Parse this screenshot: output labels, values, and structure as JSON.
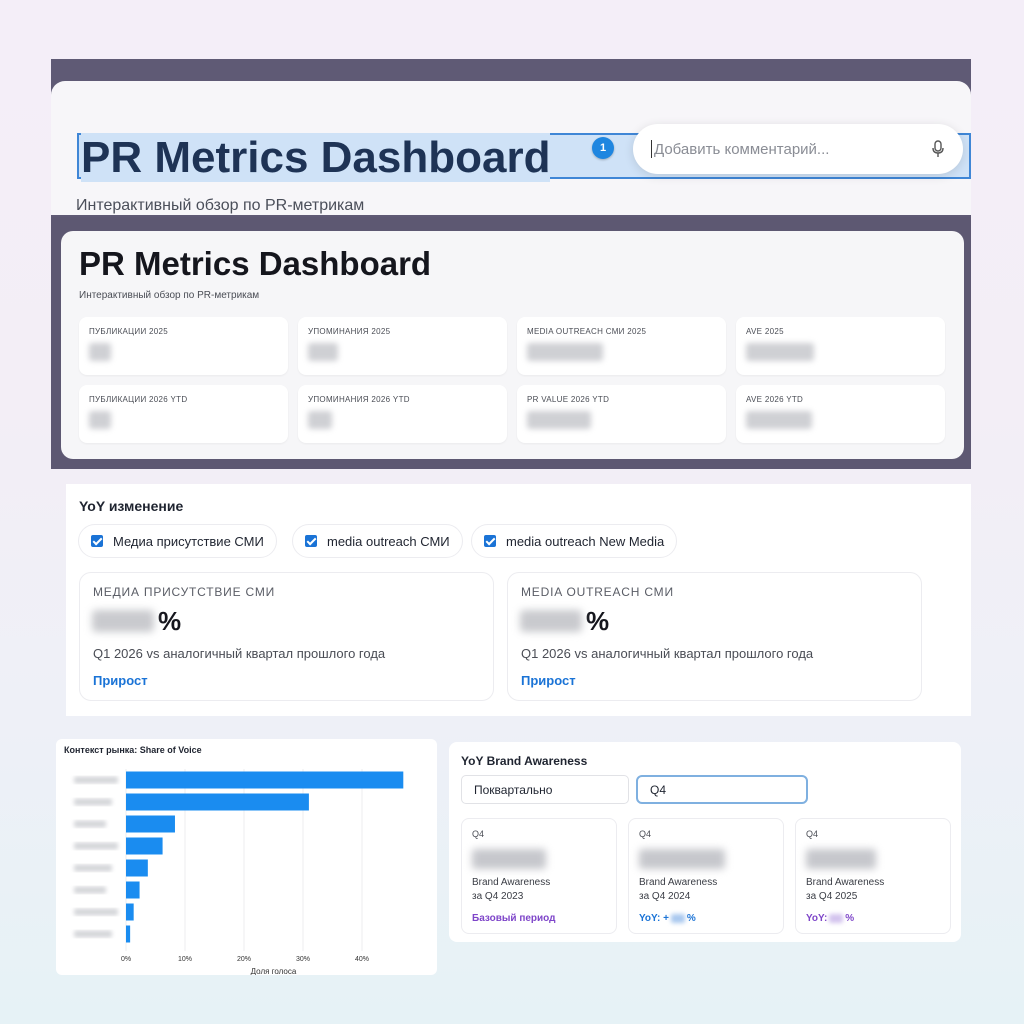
{
  "header": {
    "title": "PR Metrics Dashboard",
    "subtitle": "Интерактивный обзор по PR-метрикам",
    "comment_count": "1",
    "comment_placeholder": "Добавить комментарий..."
  },
  "kpi": {
    "title": "PR Metrics Dashboard",
    "subtitle": "Интерактивный обзор по PR-метрикам",
    "tiles": [
      {
        "label": "ПУБЛИКАЦИИ 2025"
      },
      {
        "label": "УПОМИНАНИЯ 2025"
      },
      {
        "label": "MEDIA OUTREACH СМИ 2025"
      },
      {
        "label": "AVE 2025"
      },
      {
        "label": "ПУБЛИКАЦИИ 2026 YTD"
      },
      {
        "label": "УПОМИНАНИЯ 2026 YTD"
      },
      {
        "label": "PR VALUE 2026 YTD"
      },
      {
        "label": "AVE 2026 YTD"
      }
    ]
  },
  "yoy": {
    "title": "YoY изменение",
    "filters": [
      {
        "label": "Медиа присутствие СМИ",
        "checked": true
      },
      {
        "label": "media outreach СМИ",
        "checked": true
      },
      {
        "label": "media outreach New Media",
        "checked": true
      }
    ],
    "metrics": [
      {
        "label": "МЕДИА ПРИСУТСТВИЕ СМИ",
        "unit": "%",
        "desc": "Q1 2026 vs аналогичный квартал прошлого года",
        "trend": "Прирост"
      },
      {
        "label": "MEDIA OUTREACH СМИ",
        "unit": "%",
        "desc": "Q1 2026 vs аналогичный квартал прошлого года",
        "trend": "Прирост"
      }
    ]
  },
  "sov": {
    "title": "Контекст рынка: Share of Voice",
    "xlabel": "Доля голоса",
    "color": "#1a8cf0"
  },
  "chart_data": {
    "type": "bar",
    "orientation": "horizontal",
    "title": "Контекст рынка: Share of Voice",
    "xlabel": "Доля голоса",
    "ylabel": "",
    "xlim": [
      0,
      0.45
    ],
    "xticks": [
      "0%",
      "10%",
      "20%",
      "30%",
      "40%"
    ],
    "xtick_values": [
      0,
      0.1,
      0.2,
      0.3,
      0.4
    ],
    "grid": true,
    "values": [
      0.47,
      0.31,
      0.083,
      0.062,
      0.037,
      0.023,
      0.013,
      0.007
    ]
  },
  "brand": {
    "title": "YoY Brand Awareness",
    "period_select": "Поквартально",
    "quarter_select": "Q4",
    "tiles": [
      {
        "q": "Q4",
        "l1": "Brand Awareness",
        "l2": "за Q4 2023",
        "foot_pre": "Базовый период",
        "foot_post": "",
        "color": "#7e45c9"
      },
      {
        "q": "Q4",
        "l1": "Brand Awareness",
        "l2": "за Q4 2024",
        "foot_pre": "YoY: +",
        "foot_post": "%",
        "color": "#1a73d6"
      },
      {
        "q": "Q4",
        "l1": "Brand Awareness",
        "l2": "за Q4 2025",
        "foot_pre": "YoY:",
        "foot_post": "%",
        "color": "#7e45c9"
      }
    ]
  }
}
